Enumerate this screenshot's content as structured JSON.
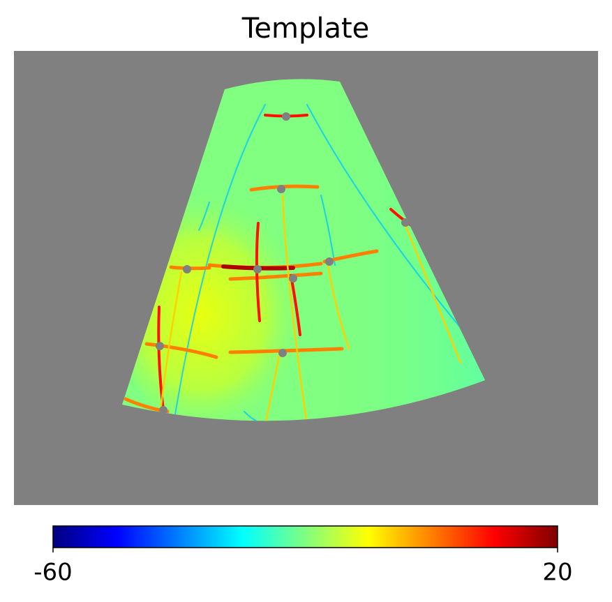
{
  "chart_data": {
    "type": "map",
    "title": "Template",
    "colormap": "jet",
    "clim": [
      -60,
      20
    ],
    "cticks": [
      -60,
      20
    ]
  }
}
